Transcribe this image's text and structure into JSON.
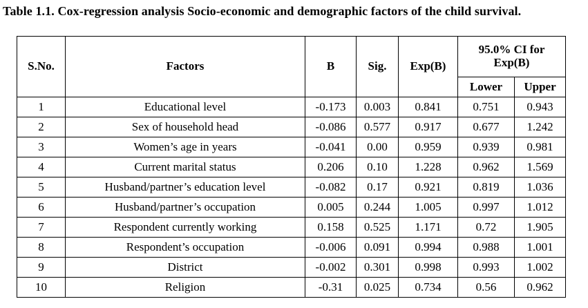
{
  "caption": "Table 1.1. Cox-regression analysis Socio-economic and demographic factors of the child survival.",
  "headers": {
    "sno": "S.No.",
    "factors": "Factors",
    "b": "B",
    "sig": "Sig.",
    "expb": "Exp(B)",
    "ci_line1": "95.0% CI for",
    "ci_line2": "Exp(B)",
    "lower": "Lower",
    "upper": "Upper"
  },
  "rows": [
    {
      "sno": "1",
      "factor": "Educational level",
      "b": "-0.173",
      "sig": "0.003",
      "expb": "0.841",
      "lower": "0.751",
      "upper": "0.943"
    },
    {
      "sno": "2",
      "factor": "Sex of household head",
      "b": "-0.086",
      "sig": "0.577",
      "expb": "0.917",
      "lower": "0.677",
      "upper": "1.242"
    },
    {
      "sno": "3",
      "factor": "Women’s age in years",
      "b": "-0.041",
      "sig": "0.00",
      "expb": "0.959",
      "lower": "0.939",
      "upper": "0.981"
    },
    {
      "sno": "4",
      "factor": "Current marital status",
      "b": "0.206",
      "sig": "0.10",
      "expb": "1.228",
      "lower": "0.962",
      "upper": "1.569"
    },
    {
      "sno": "5",
      "factor": "Husband/partner’s education level",
      "b": "-0.082",
      "sig": "0.17",
      "expb": "0.921",
      "lower": "0.819",
      "upper": "1.036"
    },
    {
      "sno": "6",
      "factor": "Husband/partner’s occupation",
      "b": "0.005",
      "sig": "0.244",
      "expb": "1.005",
      "lower": "0.997",
      "upper": "1.012"
    },
    {
      "sno": "7",
      "factor": "Respondent currently working",
      "b": "0.158",
      "sig": "0.525",
      "expb": "1.171",
      "lower": "0.72",
      "upper": "1.905"
    },
    {
      "sno": "8",
      "factor": "Respondent’s occupation",
      "b": "-0.006",
      "sig": "0.091",
      "expb": "0.994",
      "lower": "0.988",
      "upper": "1.001"
    },
    {
      "sno": "9",
      "factor": "District",
      "b": "-0.002",
      "sig": "0.301",
      "expb": "0.998",
      "lower": "0.993",
      "upper": "1.002"
    },
    {
      "sno": "10",
      "factor": "Religion",
      "b": "-0.31",
      "sig": "0.025",
      "expb": "0.734",
      "lower": "0.56",
      "upper": "0.962"
    }
  ]
}
